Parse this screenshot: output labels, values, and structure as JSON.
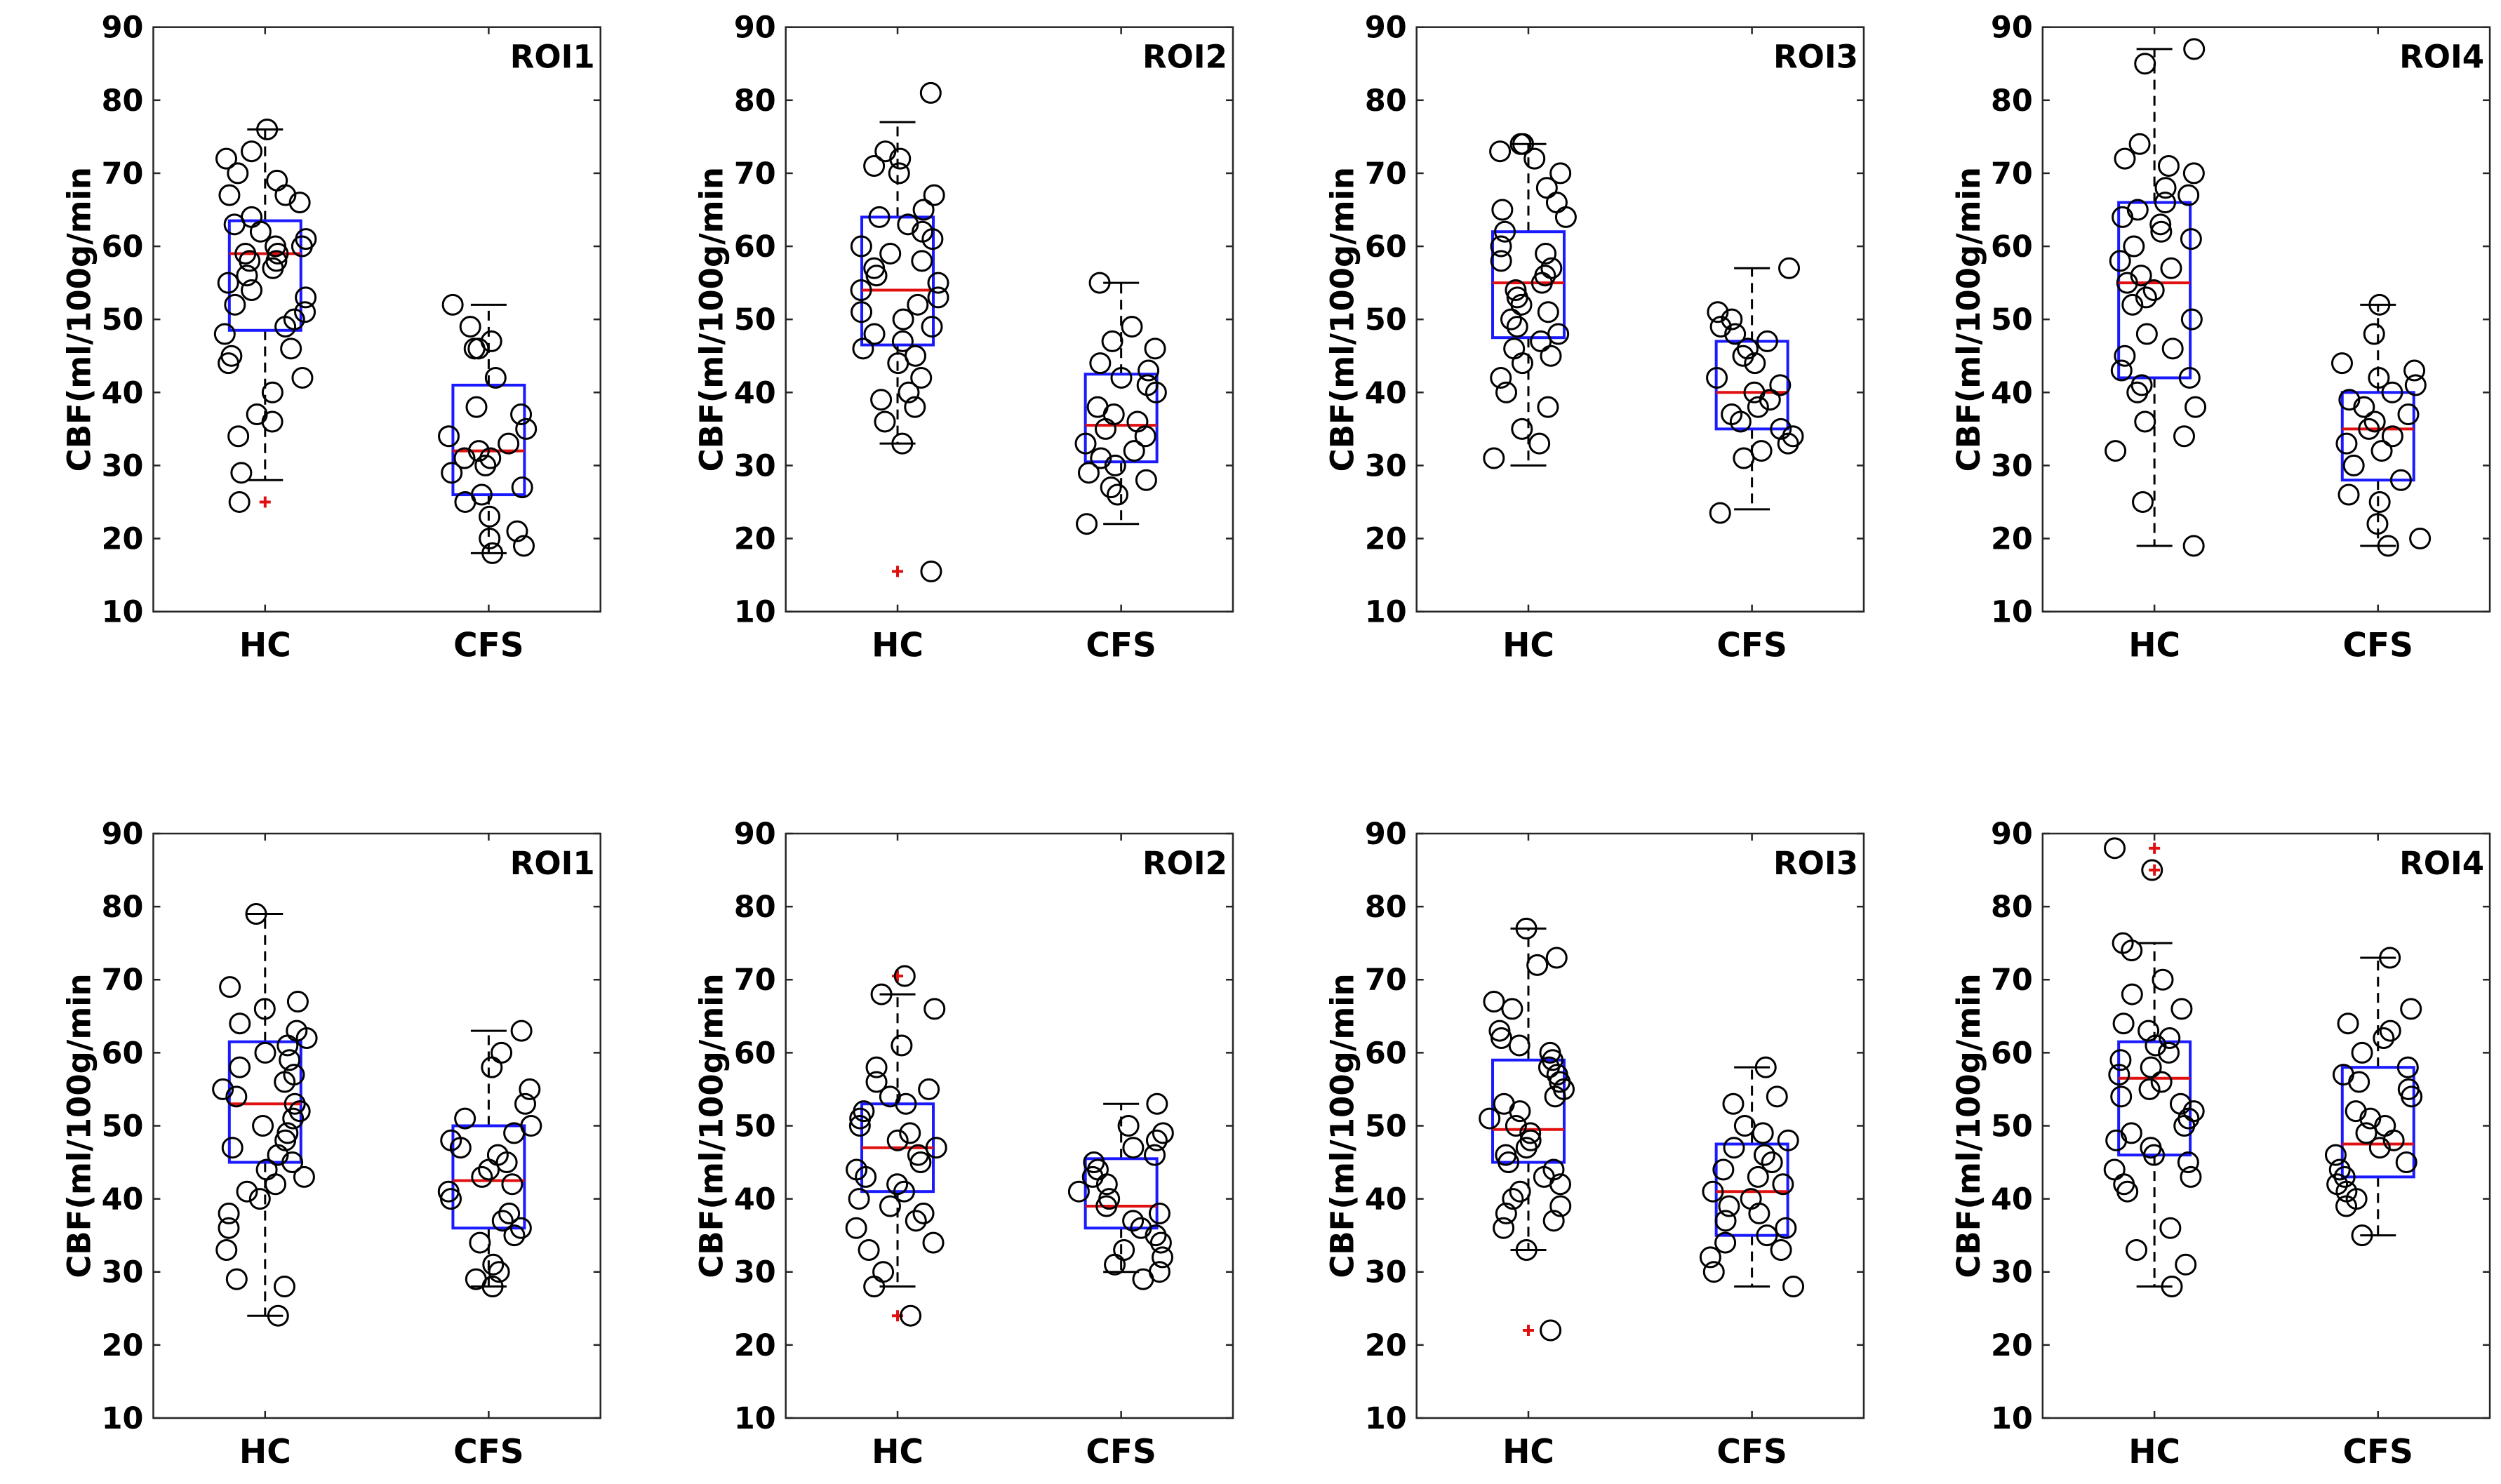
{
  "panels": [
    {
      "title": "ROI1",
      "ylabel": "CBF(ml/100g/min",
      "ylim": [
        10,
        90
      ],
      "yticks": [
        10,
        20,
        30,
        40,
        50,
        60,
        70,
        80,
        90
      ],
      "categories": [
        "HC",
        "CFS"
      ],
      "boxes": [
        {
          "q1": 48.5,
          "median": 59,
          "q3": 63.5,
          "whisker_low": 28,
          "whisker_high": 76,
          "outliers": [
            25
          ]
        },
        {
          "q1": 26,
          "median": 32,
          "q3": 41,
          "whisker_low": 18,
          "whisker_high": 52,
          "outliers": []
        }
      ],
      "points": [
        [
          67,
          76,
          73,
          72,
          70,
          69,
          67,
          66,
          64,
          63,
          62,
          61,
          60,
          60,
          59,
          59,
          58,
          58,
          57,
          56,
          55,
          54,
          53,
          52,
          51,
          50,
          49,
          48,
          46,
          45,
          44,
          42,
          40,
          37,
          36,
          34,
          29,
          25
        ],
        [
          52,
          49,
          47,
          46,
          46,
          42,
          38,
          37,
          35,
          34,
          33,
          32,
          31,
          31,
          30,
          29,
          27,
          26,
          25,
          23,
          21,
          20,
          19,
          18
        ]
      ]
    },
    {
      "title": "ROI2",
      "ylabel": "CBF(ml/100g/min",
      "ylim": [
        10,
        90
      ],
      "yticks": [
        10,
        20,
        30,
        40,
        50,
        60,
        70,
        80,
        90
      ],
      "categories": [
        "HC",
        "CFS"
      ],
      "boxes": [
        {
          "q1": 46.5,
          "median": 54,
          "q3": 64,
          "whisker_low": 33,
          "whisker_high": 77,
          "outliers": [
            15.5
          ]
        },
        {
          "q1": 30.5,
          "median": 35.5,
          "q3": 42.5,
          "whisker_low": 22,
          "whisker_high": 55,
          "outliers": []
        }
      ],
      "points": [
        [
          81,
          73,
          72,
          71,
          70,
          67,
          65,
          64,
          63,
          62,
          61,
          60,
          59,
          58,
          57,
          56,
          55,
          54,
          53,
          52,
          51,
          50,
          49,
          48,
          47,
          46,
          45,
          44,
          42,
          40,
          39,
          38,
          36,
          33,
          15.5
        ],
        [
          55,
          49,
          47,
          46,
          44,
          43,
          42,
          41,
          40,
          38,
          37,
          36,
          35,
          34,
          33,
          32,
          31,
          30,
          29,
          28,
          27,
          26,
          22
        ]
      ]
    },
    {
      "title": "ROI3",
      "ylabel": "CBF(ml/100g/min",
      "ylim": [
        10,
        90
      ],
      "yticks": [
        10,
        20,
        30,
        40,
        50,
        60,
        70,
        80,
        90
      ],
      "categories": [
        "HC",
        "CFS"
      ],
      "boxes": [
        {
          "q1": 47.5,
          "median": 55,
          "q3": 62,
          "whisker_low": 30,
          "whisker_high": 74,
          "outliers": []
        },
        {
          "q1": 35,
          "median": 40,
          "q3": 47,
          "whisker_low": 24,
          "whisker_high": 57,
          "outliers": []
        }
      ],
      "points": [
        [
          74,
          74,
          73,
          72,
          70,
          68,
          66,
          65,
          64,
          62,
          60,
          59,
          58,
          57,
          56,
          55,
          54,
          53,
          52,
          51,
          50,
          49,
          48,
          47,
          46,
          45,
          44,
          42,
          40,
          38,
          35,
          33,
          31
        ],
        [
          57,
          51,
          50,
          49,
          48,
          47,
          46,
          45,
          44,
          42,
          41,
          40,
          39,
          38,
          37,
          36,
          35,
          34,
          33,
          32,
          31,
          23.5
        ]
      ]
    },
    {
      "title": "ROI4",
      "ylabel": "CBF(ml/100g/min",
      "ylim": [
        10,
        90
      ],
      "yticks": [
        10,
        20,
        30,
        40,
        50,
        60,
        70,
        80,
        90
      ],
      "categories": [
        "HC",
        "CFS"
      ],
      "boxes": [
        {
          "q1": 42,
          "median": 55,
          "q3": 66,
          "whisker_low": 19,
          "whisker_high": 87,
          "outliers": []
        },
        {
          "q1": 28,
          "median": 35,
          "q3": 40,
          "whisker_low": 19,
          "whisker_high": 52,
          "outliers": []
        }
      ],
      "points": [
        [
          87,
          85,
          74,
          72,
          71,
          70,
          68,
          67,
          66,
          65,
          64,
          63,
          62,
          61,
          60,
          58,
          57,
          56,
          55,
          54,
          53,
          52,
          50,
          48,
          46,
          45,
          43,
          42,
          41,
          40,
          38,
          36,
          34,
          32,
          25,
          19
        ],
        [
          52,
          48,
          44,
          43,
          42,
          41,
          40,
          39,
          38,
          37,
          36,
          35,
          34,
          33,
          32,
          30,
          28,
          26,
          25,
          22,
          20,
          19
        ]
      ]
    },
    {
      "title": "ROI1",
      "ylabel": "CBF(ml/100g/min",
      "ylim": [
        10,
        90
      ],
      "yticks": [
        10,
        20,
        30,
        40,
        50,
        60,
        70,
        80,
        90
      ],
      "categories": [
        "HC",
        "CFS"
      ],
      "boxes": [
        {
          "q1": 45,
          "median": 53,
          "q3": 61.5,
          "whisker_low": 24,
          "whisker_high": 79,
          "outliers": []
        },
        {
          "q1": 36,
          "median": 42.5,
          "q3": 50,
          "whisker_low": 28,
          "whisker_high": 63,
          "outliers": []
        }
      ],
      "points": [
        [
          79,
          69,
          67,
          66,
          64,
          63,
          62,
          61,
          60,
          59,
          58,
          57,
          56,
          55,
          54,
          53,
          52,
          51,
          50,
          49,
          48,
          47,
          46,
          45,
          44,
          43,
          42,
          41,
          40,
          38,
          36,
          33,
          29,
          28,
          24
        ],
        [
          63,
          60,
          58,
          55,
          53,
          51,
          50,
          49,
          48,
          47,
          46,
          45,
          44,
          43,
          42,
          41,
          40,
          38,
          37,
          36,
          35,
          34,
          31,
          30,
          29,
          28
        ]
      ]
    },
    {
      "title": "ROI2",
      "ylabel": "CBF(ml/100g/min",
      "ylim": [
        10,
        90
      ],
      "yticks": [
        10,
        20,
        30,
        40,
        50,
        60,
        70,
        80,
        90
      ],
      "categories": [
        "HC",
        "CFS"
      ],
      "boxes": [
        {
          "q1": 41,
          "median": 47,
          "q3": 53,
          "whisker_low": 28,
          "whisker_high": 68,
          "outliers": [
            70.5,
            24
          ]
        },
        {
          "q1": 36,
          "median": 39,
          "q3": 45.5,
          "whisker_low": 30,
          "whisker_high": 53,
          "outliers": []
        }
      ],
      "points": [
        [
          70.5,
          68,
          66,
          61,
          58,
          56,
          55,
          54,
          53,
          52,
          51,
          50,
          49,
          48,
          47,
          46,
          45,
          44,
          43,
          42,
          41,
          40,
          39,
          38,
          37,
          36,
          34,
          33,
          30,
          28,
          24
        ],
        [
          53,
          50,
          49,
          48,
          47,
          46,
          45,
          44,
          43,
          42,
          41,
          40,
          39,
          38,
          37,
          36,
          35,
          34,
          33,
          32,
          31,
          30,
          29
        ]
      ]
    },
    {
      "title": "ROI3",
      "ylabel": "CBF(ml/100g/min",
      "ylim": [
        10,
        90
      ],
      "yticks": [
        10,
        20,
        30,
        40,
        50,
        60,
        70,
        80,
        90
      ],
      "categories": [
        "HC",
        "CFS"
      ],
      "boxes": [
        {
          "q1": 45,
          "median": 49.5,
          "q3": 59,
          "whisker_low": 33,
          "whisker_high": 77,
          "outliers": [
            22
          ]
        },
        {
          "q1": 35,
          "median": 41,
          "q3": 47.5,
          "whisker_low": 28,
          "whisker_high": 58,
          "outliers": []
        }
      ],
      "points": [
        [
          77,
          73,
          72,
          67,
          66,
          63,
          62,
          61,
          60,
          59,
          58,
          57,
          56,
          55,
          54,
          53,
          52,
          51,
          50,
          49,
          48,
          47,
          46,
          45,
          44,
          43,
          42,
          41,
          40,
          39,
          38,
          37,
          36,
          33,
          22
        ],
        [
          58,
          54,
          53,
          50,
          49,
          48,
          47,
          46,
          45,
          44,
          43,
          42,
          41,
          40,
          39,
          38,
          37,
          36,
          35,
          34,
          33,
          32,
          30,
          28
        ]
      ]
    },
    {
      "title": "ROI4",
      "ylabel": "CBF(ml/100g/min",
      "ylim": [
        10,
        90
      ],
      "yticks": [
        10,
        20,
        30,
        40,
        50,
        60,
        70,
        80,
        90
      ],
      "categories": [
        "HC",
        "CFS"
      ],
      "boxes": [
        {
          "q1": 46,
          "median": 56.5,
          "q3": 61.5,
          "whisker_low": 28,
          "whisker_high": 75,
          "outliers": [
            88,
            85
          ]
        },
        {
          "q1": 43,
          "median": 47.5,
          "q3": 58,
          "whisker_low": 35,
          "whisker_high": 73,
          "outliers": []
        }
      ],
      "points": [
        [
          88,
          85,
          75,
          74,
          70,
          68,
          66,
          64,
          63,
          62,
          61,
          60,
          59,
          58,
          57,
          56,
          55,
          54,
          53,
          52,
          51,
          50,
          49,
          48,
          47,
          46,
          45,
          44,
          43,
          42,
          41,
          36,
          33,
          31,
          28
        ],
        [
          73,
          66,
          64,
          63,
          62,
          60,
          58,
          57,
          56,
          55,
          54,
          52,
          51,
          50,
          49,
          48,
          47,
          46,
          45,
          44,
          43,
          42,
          41,
          40,
          39,
          35
        ]
      ]
    }
  ],
  "chart_data": [
    {
      "type": "box",
      "title": "ROI1",
      "ylabel": "CBF(ml/100g/min",
      "ylim": [
        10,
        90
      ],
      "categories": [
        "HC",
        "CFS"
      ],
      "series": [
        {
          "q1": 48.5,
          "median": 59,
          "q3": 63.5,
          "whisker_low": 28,
          "whisker_high": 76,
          "outliers": [
            25
          ]
        },
        {
          "q1": 26,
          "median": 32,
          "q3": 41,
          "whisker_low": 18,
          "whisker_high": 52,
          "outliers": []
        }
      ]
    },
    {
      "type": "box",
      "title": "ROI2",
      "ylabel": "CBF(ml/100g/min",
      "ylim": [
        10,
        90
      ],
      "categories": [
        "HC",
        "CFS"
      ],
      "series": [
        {
          "q1": 46.5,
          "median": 54,
          "q3": 64,
          "whisker_low": 33,
          "whisker_high": 77,
          "outliers": [
            15.5
          ]
        },
        {
          "q1": 30.5,
          "median": 35.5,
          "q3": 42.5,
          "whisker_low": 22,
          "whisker_high": 55,
          "outliers": []
        }
      ]
    },
    {
      "type": "box",
      "title": "ROI3",
      "ylabel": "CBF(ml/100g/min",
      "ylim": [
        10,
        90
      ],
      "categories": [
        "HC",
        "CFS"
      ],
      "series": [
        {
          "q1": 47.5,
          "median": 55,
          "q3": 62,
          "whisker_low": 30,
          "whisker_high": 74,
          "outliers": []
        },
        {
          "q1": 35,
          "median": 40,
          "q3": 47,
          "whisker_low": 24,
          "whisker_high": 57,
          "outliers": []
        }
      ]
    },
    {
      "type": "box",
      "title": "ROI4",
      "ylabel": "CBF(ml/100g/min",
      "ylim": [
        10,
        90
      ],
      "categories": [
        "HC",
        "CFS"
      ],
      "series": [
        {
          "q1": 42,
          "median": 55,
          "q3": 66,
          "whisker_low": 19,
          "whisker_high": 87,
          "outliers": []
        },
        {
          "q1": 28,
          "median": 35,
          "q3": 40,
          "whisker_low": 19,
          "whisker_high": 52,
          "outliers": []
        }
      ]
    },
    {
      "type": "box",
      "title": "ROI1",
      "ylabel": "CBF(ml/100g/min",
      "ylim": [
        10,
        90
      ],
      "categories": [
        "HC",
        "CFS"
      ],
      "series": [
        {
          "q1": 45,
          "median": 53,
          "q3": 61.5,
          "whisker_low": 24,
          "whisker_high": 79,
          "outliers": []
        },
        {
          "q1": 36,
          "median": 42.5,
          "q3": 50,
          "whisker_low": 28,
          "whisker_high": 63,
          "outliers": []
        }
      ]
    },
    {
      "type": "box",
      "title": "ROI2",
      "ylabel": "CBF(ml/100g/min",
      "ylim": [
        10,
        90
      ],
      "categories": [
        "HC",
        "CFS"
      ],
      "series": [
        {
          "q1": 41,
          "median": 47,
          "q3": 53,
          "whisker_low": 28,
          "whisker_high": 68,
          "outliers": [
            70.5,
            24
          ]
        },
        {
          "q1": 36,
          "median": 39,
          "q3": 45.5,
          "whisker_low": 30,
          "whisker_high": 53,
          "outliers": []
        }
      ]
    },
    {
      "type": "box",
      "title": "ROI3",
      "ylabel": "CBF(ml/100g/min",
      "ylim": [
        10,
        90
      ],
      "categories": [
        "HC",
        "CFS"
      ],
      "series": [
        {
          "q1": 45,
          "median": 49.5,
          "q3": 59,
          "whisker_low": 33,
          "whisker_high": 77,
          "outliers": [
            22
          ]
        },
        {
          "q1": 35,
          "median": 41,
          "q3": 47.5,
          "whisker_low": 28,
          "whisker_high": 58,
          "outliers": []
        }
      ]
    },
    {
      "type": "box",
      "title": "ROI4",
      "ylabel": "CBF(ml/100g/min",
      "ylim": [
        10,
        90
      ],
      "categories": [
        "HC",
        "CFS"
      ],
      "series": [
        {
          "q1": 46,
          "median": 56.5,
          "q3": 61.5,
          "whisker_low": 28,
          "whisker_high": 75,
          "outliers": [
            88,
            85
          ]
        },
        {
          "q1": 43,
          "median": 47.5,
          "q3": 58,
          "whisker_low": 35,
          "whisker_high": 73,
          "outliers": []
        }
      ]
    }
  ]
}
